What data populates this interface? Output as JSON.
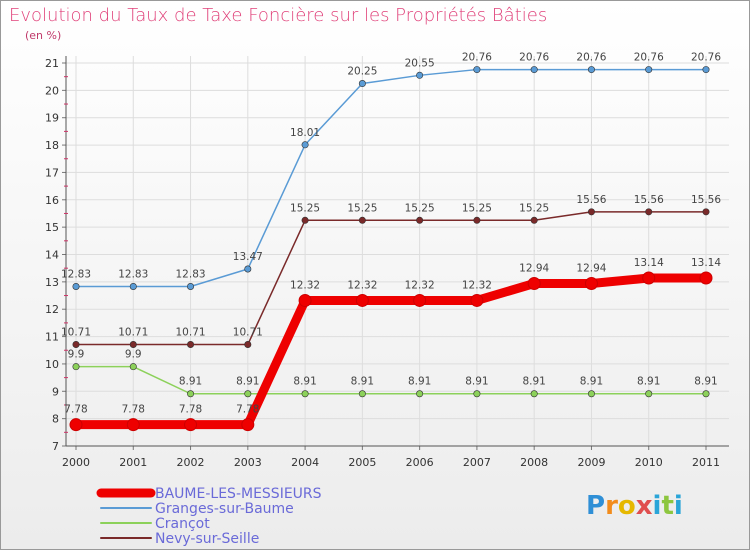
{
  "title": "Evolution du Taux de Taxe Foncière sur les Propriétés Bâties",
  "unit_label": "(en %)",
  "logo": {
    "letters": [
      "P",
      "r",
      "o",
      "x",
      "i",
      "t",
      "i"
    ],
    "colors": [
      "#2f8fd6",
      "#f28c1c",
      "#e6b800",
      "#e04e4e",
      "#2aa5d8",
      "#8dc63f",
      "#2aa5d8"
    ]
  },
  "chart_data": {
    "type": "line",
    "title": "Evolution du Taux de Taxe Foncière sur les Propriétés Bâties",
    "ylabel": "(en %)",
    "xlabel": "",
    "x": [
      "2000",
      "2001",
      "2002",
      "2003",
      "2004",
      "2005",
      "2006",
      "2007",
      "2008",
      "2009",
      "2010",
      "2011"
    ],
    "ylim": [
      7,
      21
    ],
    "yticks": [
      7,
      8,
      9,
      10,
      11,
      12,
      13,
      14,
      15,
      16,
      17,
      18,
      19,
      20,
      21
    ],
    "grid": true,
    "legend": "bottom",
    "series": [
      {
        "name": "BAUME-LES-MESSIEURS",
        "color": "#ee0000",
        "values": [
          7.78,
          7.78,
          7.78,
          7.78,
          12.32,
          12.32,
          12.32,
          12.32,
          12.94,
          12.94,
          13.14,
          13.14
        ],
        "labels": [
          "7.78",
          "7.78",
          "7.78",
          "7.78",
          "12.32",
          "12.32",
          "12.32",
          "12.32",
          "12.94",
          "12.94",
          "13.14",
          "13.14"
        ]
      },
      {
        "name": "Granges-sur-Baume",
        "color": "#5a9bd5",
        "values": [
          12.83,
          12.83,
          12.83,
          13.47,
          18.01,
          20.25,
          20.55,
          20.76,
          20.76,
          20.76,
          20.76,
          20.76
        ],
        "labels": [
          "12.83",
          "12.83",
          "12.83",
          "13.47",
          "18.01",
          "20.25",
          "20.55",
          "20.76",
          "20.76",
          "20.76",
          "20.76",
          "20.76"
        ]
      },
      {
        "name": "Crançot",
        "color": "#8cd15a",
        "values": [
          9.9,
          9.9,
          8.91,
          8.91,
          8.91,
          8.91,
          8.91,
          8.91,
          8.91,
          8.91,
          8.91,
          8.91
        ],
        "labels": [
          "9.9",
          "9.9",
          "8.91",
          "8.91",
          "8.91",
          "8.91",
          "8.91",
          "8.91",
          "8.91",
          "8.91",
          "8.91",
          "8.91"
        ]
      },
      {
        "name": "Nevy-sur-Seille",
        "color": "#7a2a2a",
        "values": [
          10.71,
          10.71,
          10.71,
          10.71,
          15.25,
          15.25,
          15.25,
          15.25,
          15.25,
          15.56,
          15.56,
          15.56
        ],
        "labels": [
          "10.71",
          "10.71",
          "10.71",
          "10.71",
          "15.25",
          "15.25",
          "15.25",
          "15.25",
          "15.25",
          "15.56",
          "15.56",
          "15.56"
        ]
      }
    ]
  }
}
